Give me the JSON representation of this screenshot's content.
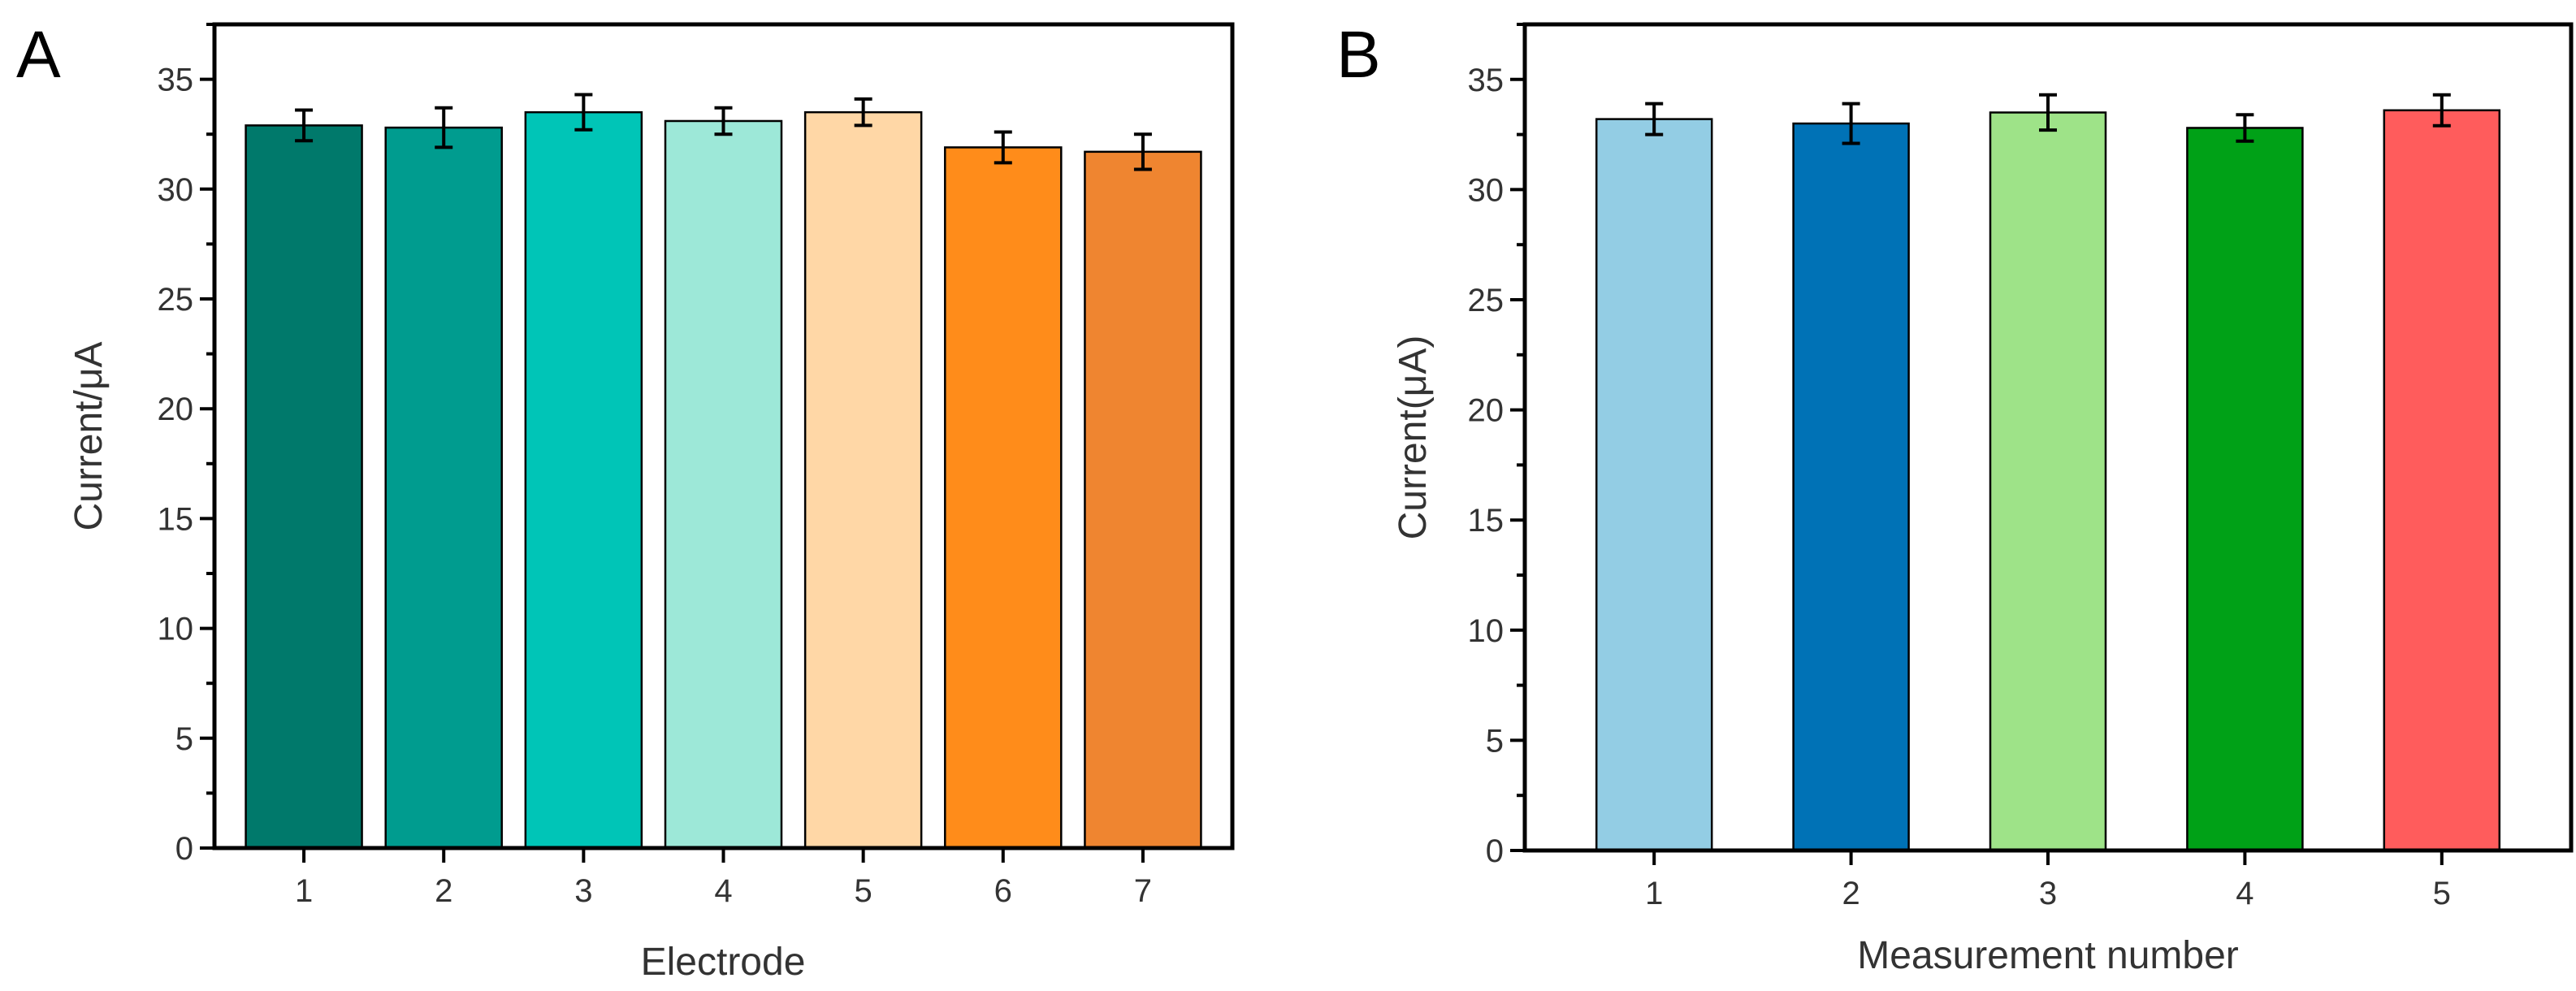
{
  "chart_data": [
    {
      "panel_label": "A",
      "type": "bar",
      "xlabel": "Electrode",
      "ylabel": "Current/μA",
      "ylim": [
        0,
        37.5
      ],
      "yticks": [
        0,
        5,
        10,
        15,
        20,
        25,
        30,
        35
      ],
      "categories": [
        "1",
        "2",
        "3",
        "4",
        "5",
        "6",
        "7"
      ],
      "values": [
        32.9,
        32.8,
        33.5,
        33.1,
        33.5,
        31.9,
        31.7
      ],
      "errors": [
        0.7,
        0.9,
        0.8,
        0.6,
        0.6,
        0.7,
        0.8
      ],
      "colors": [
        "#00796b",
        "#009c8f",
        "#00c5b7",
        "#9de8d8",
        "#ffd7a6",
        "#ff8c1a",
        "#ef8530"
      ],
      "grid": false
    },
    {
      "panel_label": "B",
      "type": "bar",
      "xlabel": "Measurement number",
      "ylabel": "Current(μA)",
      "ylim": [
        0,
        37.5
      ],
      "yticks": [
        0,
        5,
        10,
        15,
        20,
        25,
        30,
        35
      ],
      "categories": [
        "1",
        "2",
        "3",
        "4",
        "5"
      ],
      "values": [
        33.2,
        33.0,
        33.5,
        32.8,
        33.6
      ],
      "errors": [
        0.7,
        0.9,
        0.8,
        0.6,
        0.7
      ],
      "colors": [
        "#93cde4",
        "#0072b6",
        "#9ee388",
        "#00a117",
        "#ff5c5c"
      ],
      "grid": false
    }
  ]
}
